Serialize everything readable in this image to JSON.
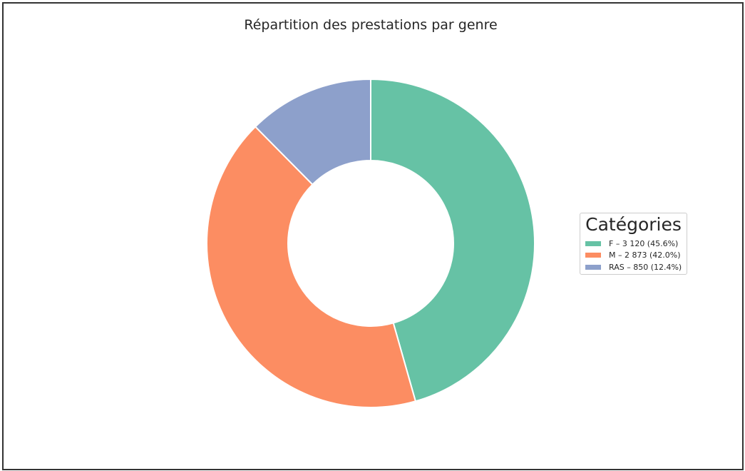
{
  "chart_data": {
    "type": "pie",
    "donut": true,
    "title": "Répartition des prestations par genre",
    "legend_title": "Catégories",
    "legend_position": "right",
    "start": "top",
    "direction": "clockwise",
    "slices": [
      {
        "category": "F",
        "value": 3120,
        "percent": 45.6,
        "label": "F – 3 120 (45.6%)",
        "color": "#66c2a5"
      },
      {
        "category": "M",
        "value": 2873,
        "percent": 42.0,
        "label": "M – 2 873 (42.0%)",
        "color": "#fc8d62"
      },
      {
        "category": "RAS",
        "value": 850,
        "percent": 12.4,
        "label": "RAS – 850 (12.4%)",
        "color": "#8da0cb"
      }
    ]
  }
}
